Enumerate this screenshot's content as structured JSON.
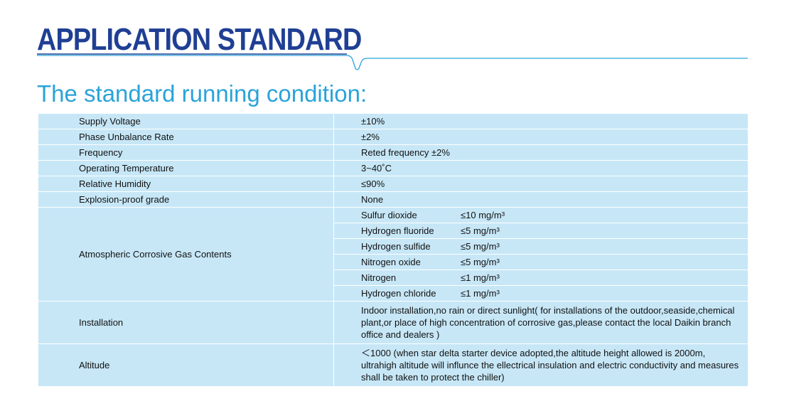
{
  "header": {
    "title": "APPLICATION STANDARD",
    "accent_color": "#1f3f94",
    "line_color": "#2aa3d9"
  },
  "subtitle": "The standard running condition:",
  "table": {
    "cell_color": "#c7e7f7",
    "rows": [
      {
        "param": "Supply Voltage",
        "value": "±10%"
      },
      {
        "param": "Phase Unbalance Rate",
        "value": "±2%"
      },
      {
        "param": "Frequency",
        "value": "Reted frequency ±2%"
      },
      {
        "param": "Operating Temperature",
        "value": "3~40˚C"
      },
      {
        "param": "Relative Humidity",
        "value": "≤90%"
      },
      {
        "param": "Explosion-proof grade",
        "value": "None"
      }
    ],
    "gas": {
      "param": "Atmospheric Corrosive Gas Contents",
      "items": [
        {
          "name": "Sulfur dioxide",
          "value": "≤10 mg/m³"
        },
        {
          "name": "Hydrogen fluoride",
          "value": "≤5 mg/m³"
        },
        {
          "name": "Hydrogen sulfide",
          "value": "≤5 mg/m³"
        },
        {
          "name": "Nitrogen oxide",
          "value": "≤5 mg/m³"
        },
        {
          "name": "Nitrogen",
          "value": "≤1 mg/m³"
        },
        {
          "name": "Hydrogen chloride",
          "value": "≤1 mg/m³"
        }
      ]
    },
    "installation": {
      "param": "Installation",
      "value": "Indoor installation,no rain or direct sunlight( for installations of the outdoor,seaside,chemical plant,or place of high concentration of corrosive gas,please contact the local Daikin branch office and dealers )"
    },
    "altitude": {
      "param": "Altitude",
      "value": "＜1000 (when star delta starter device adopted,the altitude height allowed is 2000m, ultrahigh altitude will influnce the ellectrical insulation and electric conductivity and measures shall be taken to protect the chiller)"
    }
  }
}
